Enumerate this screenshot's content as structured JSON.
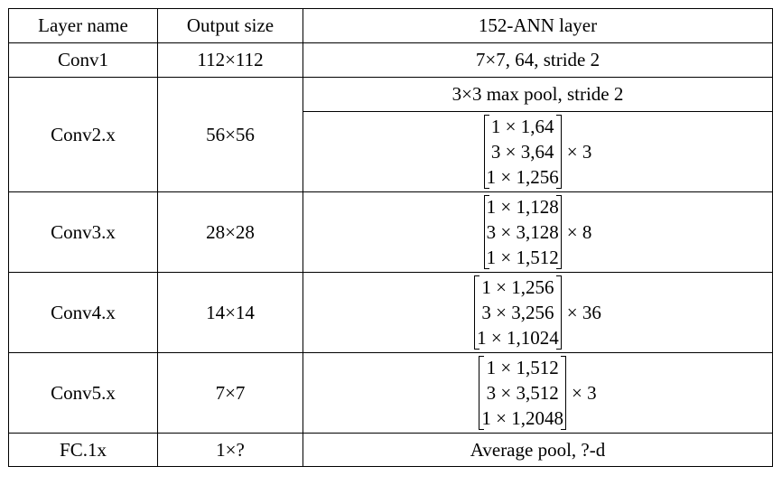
{
  "table": {
    "headers": [
      "Layer name",
      "Output size",
      "152-ANN layer"
    ],
    "rows": {
      "conv1": {
        "name": "Conv1",
        "size": "112×112",
        "layer": "7×7, 64, stride 2"
      },
      "conv2": {
        "name": "Conv2.x",
        "size": "56×56",
        "pool": "3×3 max pool, stride 2",
        "block": [
          "1 × 1,64",
          "3 × 3,64",
          "1 × 1,256"
        ],
        "mult": "× 3"
      },
      "conv3": {
        "name": "Conv3.x",
        "size": "28×28",
        "block": [
          "1 × 1,128",
          "3 × 3,128",
          "1 × 1,512"
        ],
        "mult": "× 8"
      },
      "conv4": {
        "name": "Conv4.x",
        "size": "14×14",
        "block": [
          "1 × 1,256",
          "3 × 3,256",
          "1 × 1,1024"
        ],
        "mult": "× 36"
      },
      "conv5": {
        "name": "Conv5.x",
        "size": "7×7",
        "block": [
          "1 × 1,512",
          "3 × 3,512",
          "1 × 1,2048"
        ],
        "mult": "× 3"
      },
      "fc": {
        "name": "FC.1x",
        "size": "1×?",
        "layer": "Average pool, ?-d"
      }
    }
  }
}
